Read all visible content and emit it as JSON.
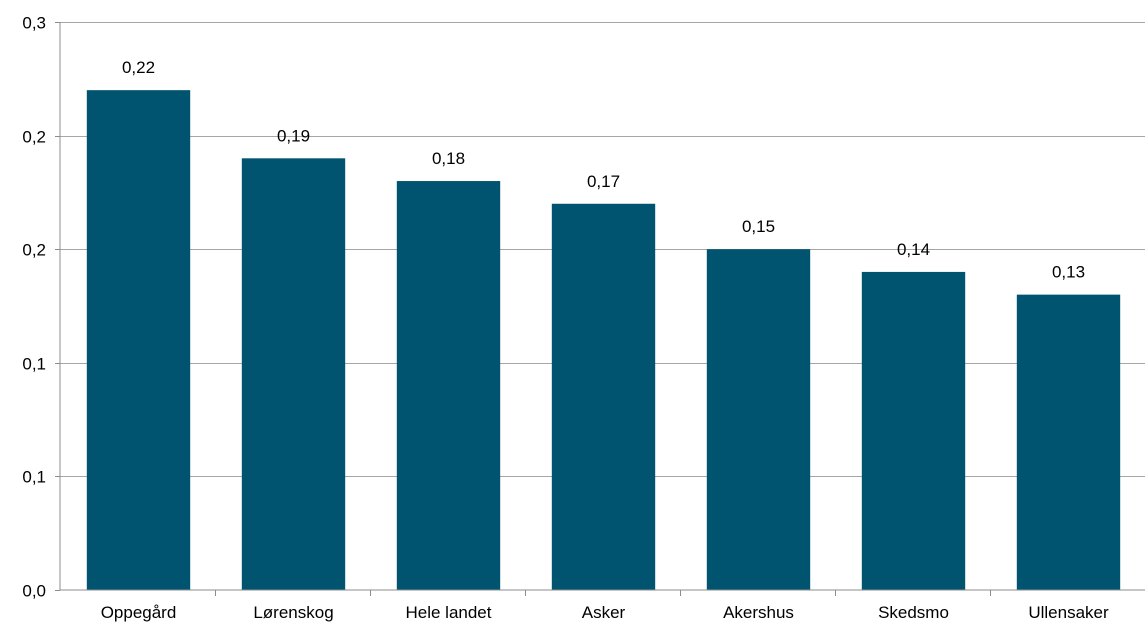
{
  "chart_data": {
    "type": "bar",
    "categories": [
      "Oppegård",
      "Lørenskog",
      "Hele landet",
      "Asker",
      "Akershus",
      "Skedsmo",
      "Ullensaker"
    ],
    "values": [
      0.22,
      0.19,
      0.18,
      0.17,
      0.15,
      0.14,
      0.13
    ],
    "data_labels": [
      "0,22",
      "0,19",
      "0,18",
      "0,17",
      "0,15",
      "0,14",
      "0,13"
    ],
    "y_tick_labels": [
      "0,0",
      "0,1",
      "0,1",
      "0,2",
      "0,2",
      "0,3"
    ],
    "y_tick_values": [
      0.0,
      0.05,
      0.1,
      0.15,
      0.2,
      0.25
    ],
    "ylim": [
      0,
      0.25
    ],
    "title": "",
    "xlabel": "",
    "ylabel": "",
    "grid": "horizontal",
    "legend": "none",
    "bar_color": "#00546f",
    "grid_color": "#a6a6a6"
  }
}
